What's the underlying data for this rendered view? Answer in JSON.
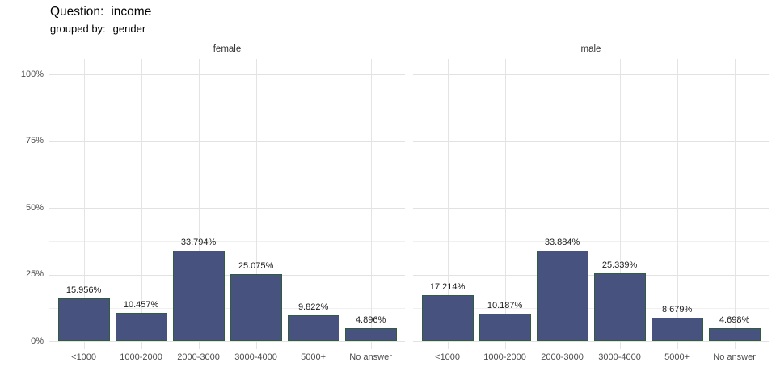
{
  "header": {
    "title_label": "Question:",
    "title_value": "income",
    "subtitle_label": "grouped by:",
    "subtitle_value": "gender"
  },
  "chart_data": {
    "type": "bar",
    "title": "Question: income",
    "subtitle": "grouped by: gender",
    "facet_variable": "gender",
    "categories": [
      "<1000",
      "1000-2000",
      "2000-3000",
      "3000-4000",
      "5000+",
      "No answer"
    ],
    "facets": [
      {
        "name": "female",
        "values": [
          15.956,
          10.457,
          33.794,
          25.075,
          9.822,
          4.896
        ],
        "value_labels": [
          "15.956%",
          "10.457%",
          "33.794%",
          "25.075%",
          "9.822%",
          "4.896%"
        ]
      },
      {
        "name": "male",
        "values": [
          17.214,
          10.187,
          33.884,
          25.339,
          8.679,
          4.698
        ],
        "value_labels": [
          "17.214%",
          "10.187%",
          "33.884%",
          "25.339%",
          "8.679%",
          "4.698%"
        ]
      }
    ],
    "y_axis": {
      "ticks": [
        {
          "label": "0%",
          "value": 0
        },
        {
          "label": "25%",
          "value": 25
        },
        {
          "label": "50%",
          "value": 50
        },
        {
          "label": "75%",
          "value": 75
        },
        {
          "label": "100%",
          "value": 100
        }
      ],
      "minor_ticks": [
        12.5,
        37.5,
        62.5,
        87.5
      ],
      "ylim": [
        0,
        100
      ]
    },
    "layout_hints": {
      "grid": "on",
      "legend": "none",
      "value_labels_position": "above-bars"
    },
    "colors": {
      "bar_fill": "#47537e",
      "bar_border": "#2f5d3d",
      "grid_major": "#e2e2e2",
      "grid_minor": "#f0f0f0",
      "axis_text": "#4d4d4d",
      "title_text": "#000000"
    }
  }
}
